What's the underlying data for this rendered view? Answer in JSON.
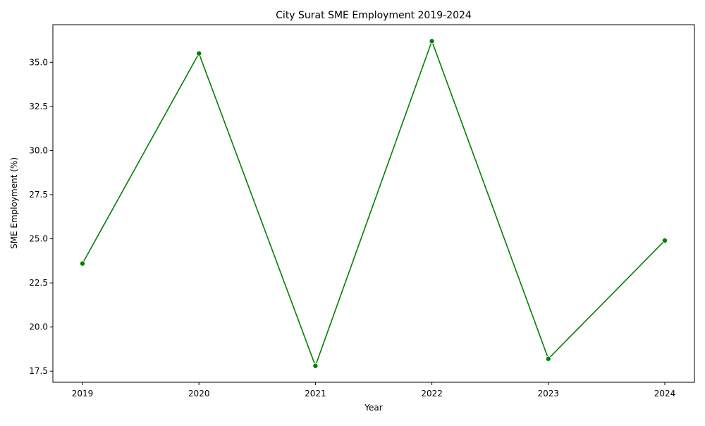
{
  "chart_data": {
    "type": "line",
    "title": "City Surat SME Employment 2019-2024",
    "xlabel": "Year",
    "ylabel": "SME Employment (%)",
    "x": [
      "2019",
      "2020",
      "2021",
      "2022",
      "2023",
      "2024"
    ],
    "series": [
      {
        "values": [
          23.6,
          35.5,
          17.8,
          36.2,
          18.2,
          24.9
        ],
        "color": "#008000",
        "marker": "circle"
      }
    ],
    "yticks": [
      "17.5",
      "20.0",
      "22.5",
      "25.0",
      "27.5",
      "30.0",
      "32.5",
      "35.0"
    ],
    "ylim": [
      16.87,
      37.13
    ],
    "grid": false,
    "legend": "none"
  }
}
